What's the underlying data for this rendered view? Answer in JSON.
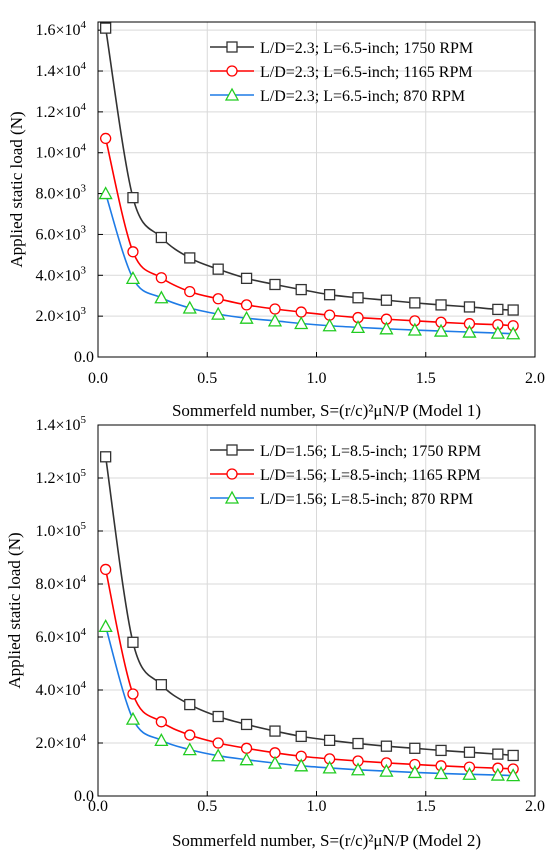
{
  "chart_data": [
    {
      "type": "line",
      "xlabel": "Sommerfeld number, S=(r/c)²μN/P (Model 1)",
      "ylabel": "Applied static load (N)",
      "xlim": [
        0,
        2.0
      ],
      "ylim": [
        0,
        16400
      ],
      "xticks": [
        "0.0",
        "0.5",
        "1.0",
        "1.5",
        "2.0"
      ],
      "yticks": [
        {
          "value": 0,
          "mant": "0.0",
          "exp": ""
        },
        {
          "value": 2000,
          "mant": "2.0×10",
          "exp": "3"
        },
        {
          "value": 4000,
          "mant": "4.0×10",
          "exp": "3"
        },
        {
          "value": 6000,
          "mant": "6.0×10",
          "exp": "3"
        },
        {
          "value": 8000,
          "mant": "8.0×10",
          "exp": "3"
        },
        {
          "value": 10000,
          "mant": "1.0×10",
          "exp": "4"
        },
        {
          "value": 12000,
          "mant": "1.2×10",
          "exp": "4"
        },
        {
          "value": 14000,
          "mant": "1.4×10",
          "exp": "4"
        },
        {
          "value": 16000,
          "mant": "1.6×10",
          "exp": "4"
        }
      ],
      "grid": true,
      "legend_position": "top-right",
      "x": [
        0.035,
        0.16,
        0.29,
        0.42,
        0.55,
        0.68,
        0.81,
        0.93,
        1.06,
        1.19,
        1.32,
        1.45,
        1.57,
        1.7,
        1.83,
        1.9
      ],
      "series": [
        {
          "name": "L/D=2.3; L=6.5-inch; 1750 RPM",
          "marker": "square",
          "color": "#333333",
          "values": [
            16100,
            7800,
            5850,
            4850,
            4300,
            3850,
            3550,
            3300,
            3050,
            2900,
            2780,
            2650,
            2550,
            2450,
            2330,
            2300
          ]
        },
        {
          "name": "L/D=2.3; L=6.5-inch; 1165 RPM",
          "marker": "circle",
          "color": "#ff0000",
          "values": [
            10700,
            5150,
            3880,
            3200,
            2850,
            2550,
            2350,
            2200,
            2050,
            1930,
            1850,
            1770,
            1700,
            1630,
            1580,
            1530
          ]
        },
        {
          "name": "L/D=2.3; L=6.5-inch; 870 RPM",
          "marker": "triangle",
          "color": "#1e7be6",
          "marker_color": "#22cc22",
          "values": [
            8000,
            3850,
            2900,
            2400,
            2100,
            1900,
            1770,
            1640,
            1530,
            1450,
            1380,
            1320,
            1270,
            1220,
            1170,
            1140
          ]
        }
      ]
    },
    {
      "type": "line",
      "xlabel": "Sommerfeld number, S=(r/c)²μN/P (Model 2)",
      "ylabel": "Applied static load (N)",
      "xlim": [
        0,
        2.0
      ],
      "ylim": [
        0,
        140000
      ],
      "xticks": [
        "0.0",
        "0.5",
        "1.0",
        "1.5",
        "2.0"
      ],
      "yticks": [
        {
          "value": 0,
          "mant": "0.0",
          "exp": ""
        },
        {
          "value": 20000,
          "mant": "2.0×10",
          "exp": "4"
        },
        {
          "value": 40000,
          "mant": "4.0×10",
          "exp": "4"
        },
        {
          "value": 60000,
          "mant": "6.0×10",
          "exp": "4"
        },
        {
          "value": 80000,
          "mant": "8.0×10",
          "exp": "4"
        },
        {
          "value": 100000,
          "mant": "1.0×10",
          "exp": "5"
        },
        {
          "value": 120000,
          "mant": "1.2×10",
          "exp": "5"
        },
        {
          "value": 140000,
          "mant": "1.4×10",
          "exp": "5"
        }
      ],
      "grid": true,
      "legend_position": "top-right",
      "x": [
        0.035,
        0.16,
        0.29,
        0.42,
        0.55,
        0.68,
        0.81,
        0.93,
        1.06,
        1.19,
        1.32,
        1.45,
        1.57,
        1.7,
        1.83,
        1.9
      ],
      "series": [
        {
          "name": "L/D=1.56; L=8.5-inch; 1750 RPM",
          "marker": "square",
          "color": "#333333",
          "values": [
            128000,
            58000,
            42000,
            34500,
            30000,
            27000,
            24500,
            22500,
            21000,
            19800,
            18800,
            18000,
            17200,
            16500,
            15800,
            15300
          ]
        },
        {
          "name": "L/D=1.56; L=8.5-inch; 1165 RPM",
          "marker": "circle",
          "color": "#ff0000",
          "values": [
            85500,
            38500,
            28000,
            23000,
            20000,
            18000,
            16300,
            15000,
            14000,
            13200,
            12500,
            11900,
            11400,
            10900,
            10500,
            10200
          ]
        },
        {
          "name": "L/D=1.56; L=8.5-inch; 870 RPM",
          "marker": "triangle",
          "color": "#1e7be6",
          "marker_color": "#22cc22",
          "values": [
            64000,
            29000,
            21000,
            17500,
            15200,
            13700,
            12400,
            11400,
            10600,
            9900,
            9400,
            8900,
            8500,
            8200,
            7900,
            7700
          ]
        }
      ]
    }
  ]
}
